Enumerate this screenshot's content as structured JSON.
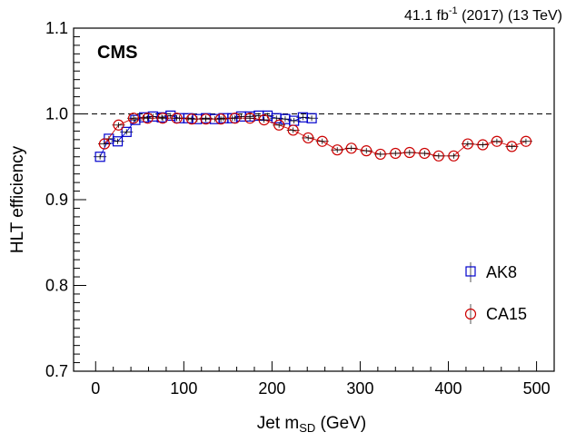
{
  "header": {
    "lumi_value": "41.1 fb",
    "lumi_exp": "-1",
    "lumi_rest": " (2017) (13 TeV)",
    "experiment": "CMS"
  },
  "chart_data": {
    "type": "scatter",
    "xlabel_main": "Jet m",
    "xlabel_sub": "SD",
    "xlabel_unit": " (GeV)",
    "ylabel": "HLT efficiency",
    "xlim": [
      -25,
      520
    ],
    "ylim": [
      0.7,
      1.1
    ],
    "x_ticks": [
      0,
      100,
      200,
      300,
      400,
      500
    ],
    "y_ticks": [
      0.7,
      0.8,
      0.9,
      1.0,
      1.1
    ],
    "x_tick_labels": [
      "0",
      "100",
      "200",
      "300",
      "400",
      "500"
    ],
    "y_tick_labels": [
      "0.7",
      "0.8",
      "0.9",
      "1.0",
      "1.1"
    ],
    "reference_line": 1.0,
    "legend_position": "right",
    "series": [
      {
        "name": "AK8",
        "marker": "open-square",
        "color": "#0000cc",
        "x": [
          5,
          15,
          25,
          35,
          45,
          55,
          65,
          75,
          85,
          95,
          105,
          115,
          125,
          135,
          145,
          155,
          165,
          175,
          185,
          195,
          205,
          215,
          225,
          235,
          245
        ],
        "y": [
          0.95,
          0.971,
          0.968,
          0.979,
          0.993,
          0.996,
          0.997,
          0.996,
          0.998,
          0.995,
          0.995,
          0.994,
          0.995,
          0.994,
          0.995,
          0.995,
          0.997,
          0.997,
          0.998,
          0.998,
          0.995,
          0.994,
          0.992,
          0.996,
          0.995
        ]
      },
      {
        "name": "CA15",
        "marker": "open-circle",
        "color": "#cc0000",
        "x": [
          10,
          26,
          43,
          59,
          76,
          92,
          109,
          125,
          142,
          158,
          175,
          191,
          208,
          224,
          241,
          257,
          274,
          290,
          307,
          323,
          340,
          356,
          373,
          389,
          406,
          422,
          439,
          455,
          472,
          488
        ],
        "y": [
          0.965,
          0.987,
          0.995,
          0.995,
          0.995,
          0.995,
          0.994,
          0.994,
          0.994,
          0.995,
          0.995,
          0.993,
          0.987,
          0.981,
          0.972,
          0.968,
          0.958,
          0.96,
          0.957,
          0.953,
          0.954,
          0.955,
          0.954,
          0.951,
          0.951,
          0.965,
          0.964,
          0.968,
          0.962,
          0.968
        ]
      }
    ]
  }
}
